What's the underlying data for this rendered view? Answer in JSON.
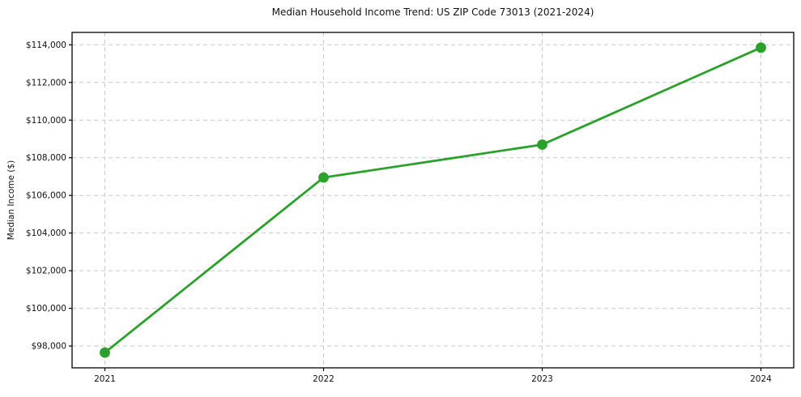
{
  "chart_data": {
    "type": "line",
    "title": "Median Household Income Trend: US ZIP Code 73013 (2021-2024)",
    "xlabel": "",
    "ylabel": "Median Income ($)",
    "x": [
      2021,
      2022,
      2023,
      2024
    ],
    "series": [
      {
        "name": "Median Household Income",
        "values": [
          97650,
          106950,
          108700,
          113850
        ]
      }
    ],
    "x_tick_labels": [
      "2021",
      "2022",
      "2023",
      "2024"
    ],
    "y_ticks": [
      98000,
      100000,
      102000,
      104000,
      106000,
      108000,
      110000,
      112000,
      114000
    ],
    "y_tick_labels": [
      "$98,000",
      "$100,000",
      "$102,000",
      "$104,000",
      "$106,000",
      "$108,000",
      "$110,000",
      "$112,000",
      "$114,000"
    ],
    "xlim": [
      2020.85,
      2024.15
    ],
    "ylim": [
      96840,
      114660
    ],
    "grid": true,
    "legend": "none",
    "line_color": "#2ca02c",
    "marker": "circle",
    "marker_color": "#2ca02c",
    "grid_color": "#c9c9c9",
    "axis_color": "#000000",
    "background_color": "#ffffff"
  }
}
